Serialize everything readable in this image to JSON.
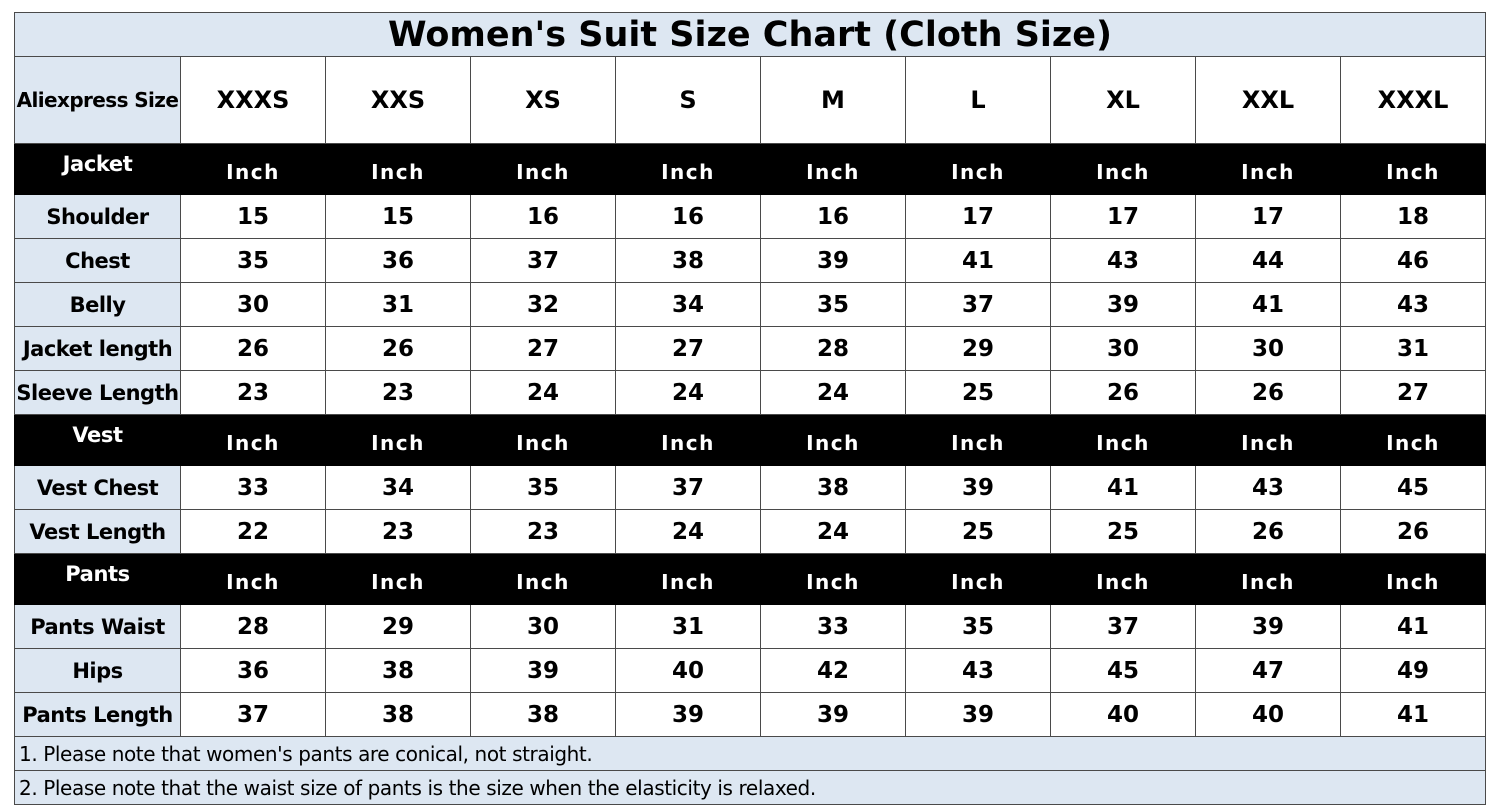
{
  "title": "Women's Suit Size Chart (Cloth Size)",
  "size_header": {
    "label": "Aliexpress Size",
    "sizes": [
      "XXXS",
      "XXS",
      "XS",
      "S",
      "M",
      "L",
      "XL",
      "XXL",
      "XXXL"
    ]
  },
  "sections": [
    {
      "name": "Jacket",
      "unit": "Inch",
      "rows": [
        {
          "label": "Shoulder",
          "values": [
            "15",
            "15",
            "16",
            "16",
            "16",
            "17",
            "17",
            "17",
            "18"
          ]
        },
        {
          "label": "Chest",
          "values": [
            "35",
            "36",
            "37",
            "38",
            "39",
            "41",
            "43",
            "44",
            "46"
          ]
        },
        {
          "label": "Belly",
          "values": [
            "30",
            "31",
            "32",
            "34",
            "35",
            "37",
            "39",
            "41",
            "43"
          ]
        },
        {
          "label": "Jacket length",
          "values": [
            "26",
            "26",
            "27",
            "27",
            "28",
            "29",
            "30",
            "30",
            "31"
          ]
        },
        {
          "label": "Sleeve Length",
          "values": [
            "23",
            "23",
            "24",
            "24",
            "24",
            "25",
            "26",
            "26",
            "27"
          ]
        }
      ]
    },
    {
      "name": "Vest",
      "unit": "Inch",
      "rows": [
        {
          "label": "Vest Chest",
          "values": [
            "33",
            "34",
            "35",
            "37",
            "38",
            "39",
            "41",
            "43",
            "45"
          ]
        },
        {
          "label": "Vest Length",
          "values": [
            "22",
            "23",
            "23",
            "24",
            "24",
            "25",
            "25",
            "26",
            "26"
          ]
        }
      ]
    },
    {
      "name": "Pants",
      "unit": "Inch",
      "rows": [
        {
          "label": "Pants Waist",
          "values": [
            "28",
            "29",
            "30",
            "31",
            "33",
            "35",
            "37",
            "39",
            "41"
          ]
        },
        {
          "label": "Hips",
          "values": [
            "36",
            "38",
            "39",
            "40",
            "42",
            "43",
            "45",
            "47",
            "49"
          ]
        },
        {
          "label": "Pants Length",
          "values": [
            "37",
            "38",
            "38",
            "39",
            "39",
            "39",
            "40",
            "40",
            "41"
          ]
        }
      ]
    }
  ],
  "notes": [
    "1. Please note that women's pants are conical, not straight.",
    "2. Please note that the waist size of pants is the size when the elasticity is relaxed."
  ],
  "colors": {
    "label_background": "#dde7f2",
    "section_band": "#000000",
    "grid_line": "#4a4a4a"
  }
}
